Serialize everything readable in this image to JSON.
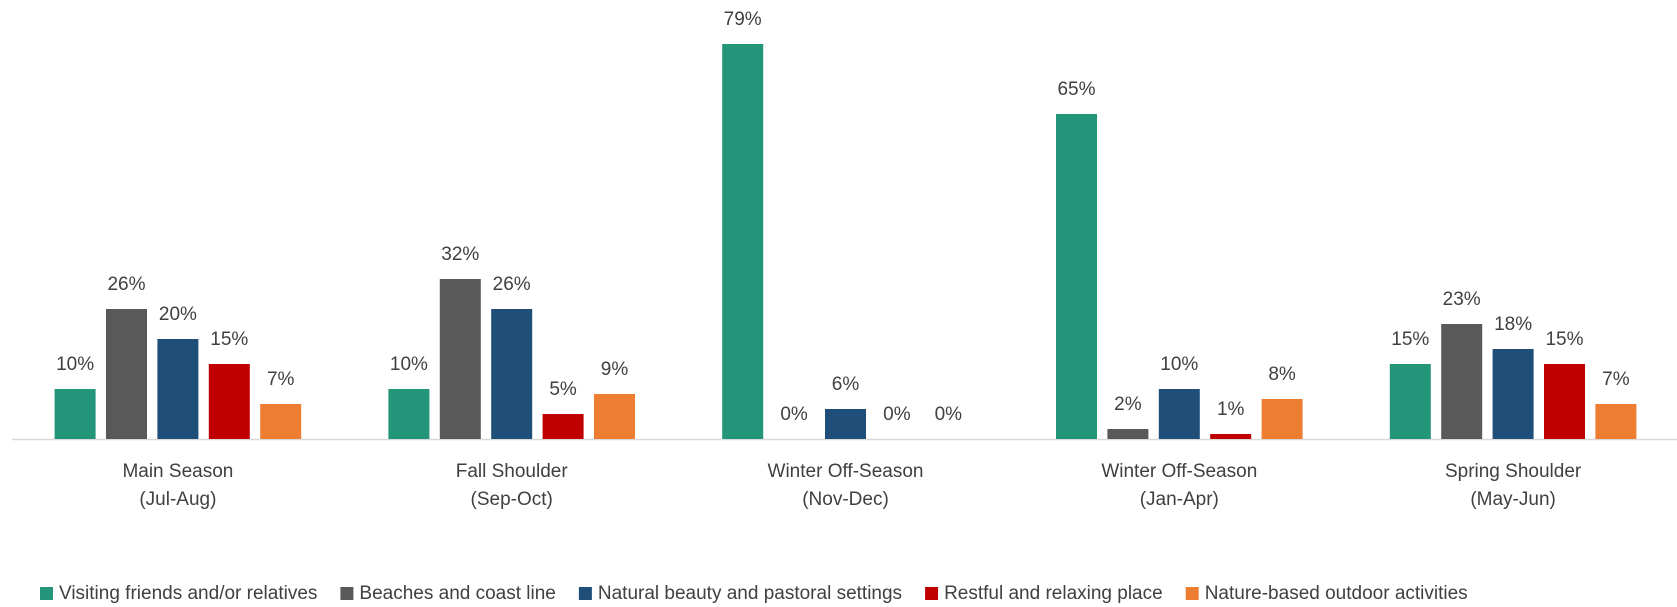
{
  "chart_data": {
    "type": "bar",
    "categories": [
      [
        "Main Season",
        "(Jul-Aug)"
      ],
      [
        "Fall Shoulder",
        "(Sep-Oct)"
      ],
      [
        "Winter Off-Season",
        "(Nov-Dec)"
      ],
      [
        "Winter Off-Season",
        "(Jan-Apr)"
      ],
      [
        "Spring Shoulder",
        "(May-Jun)"
      ]
    ],
    "series": [
      {
        "name": "Visiting friends and/or relatives",
        "color": "#239679",
        "values": [
          10,
          10,
          79,
          65,
          15
        ],
        "value_labels": [
          "10%",
          "10%",
          "79%",
          "65%",
          "15%"
        ]
      },
      {
        "name": "Beaches and coast line",
        "color": "#595959",
        "values": [
          26,
          32,
          0,
          2,
          23
        ],
        "value_labels": [
          "26%",
          "32%",
          "0%",
          "2%",
          "23%"
        ]
      },
      {
        "name": "Natural beauty and pastoral settings",
        "color": "#1f4e79",
        "values": [
          20,
          26,
          6,
          10,
          18
        ],
        "value_labels": [
          "20%",
          "26%",
          "6%",
          "10%",
          "18%"
        ]
      },
      {
        "name": "Restful and relaxing place",
        "color": "#c00000",
        "values": [
          15,
          5,
          0,
          1,
          15
        ],
        "value_labels": [
          "15%",
          "5%",
          "0%",
          "1%",
          "15%"
        ]
      },
      {
        "name": "Nature-based outdoor activities",
        "color": "#ed7d31",
        "values": [
          7,
          9,
          0,
          8,
          7
        ],
        "value_labels": [
          "7%",
          "9%",
          "0%",
          "8%",
          "7%"
        ]
      }
    ],
    "ylim": [
      0,
      80
    ],
    "legend": "bottom"
  }
}
